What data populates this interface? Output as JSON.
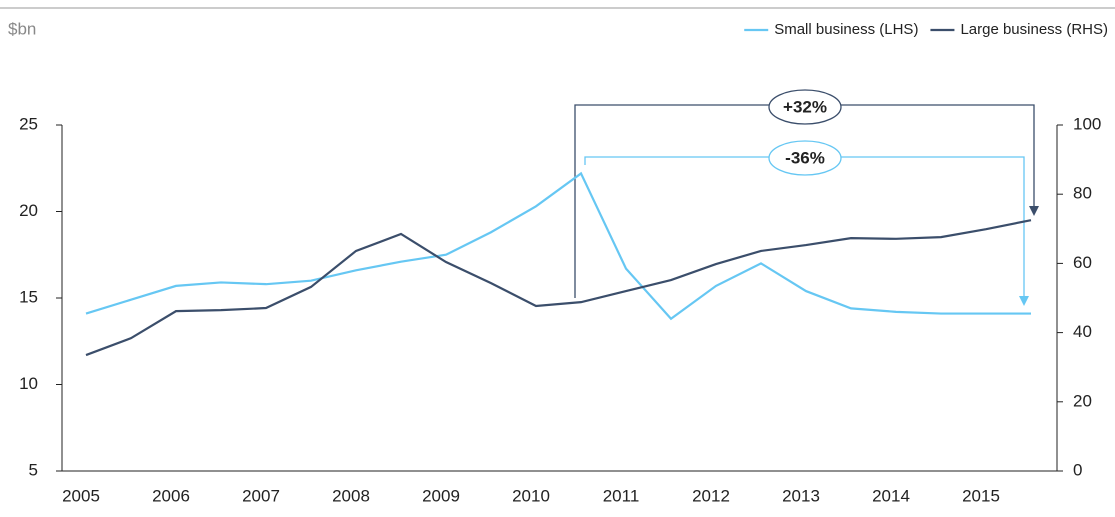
{
  "chart_data": {
    "type": "line",
    "unit_label": "$bn",
    "categories": [
      "2005",
      null,
      "2006",
      null,
      "2007",
      null,
      "2008",
      null,
      "2009",
      null,
      "2010",
      null,
      "2011",
      null,
      "2012",
      null,
      "2013",
      null,
      "2014",
      null,
      "2015",
      null
    ],
    "series": [
      {
        "name": "Small business (LHS)",
        "color": "#66c7f3",
        "axis": "y",
        "values": [
          14.1,
          14.9,
          15.7,
          15.9,
          15.8,
          16.0,
          16.6,
          17.1,
          17.5,
          18.8,
          20.3,
          22.2,
          16.7,
          13.8,
          15.7,
          17.0,
          15.4,
          14.4,
          14.2,
          14.1,
          14.1,
          14.1
        ]
      },
      {
        "name": "Large business (RHS)",
        "color": "#3b4e6b",
        "axis": "y2",
        "values": [
          33.5,
          38.4,
          46.2,
          46.5,
          47.1,
          53.2,
          63.6,
          68.5,
          60.4,
          54.3,
          47.7,
          48.8,
          52.0,
          55.2,
          59.8,
          63.6,
          65.3,
          67.3,
          67.1,
          67.6,
          69.9,
          72.5
        ]
      }
    ],
    "ylim": [
      5,
      25
    ],
    "yticks": [
      5,
      10,
      15,
      20,
      25
    ],
    "y2lim": [
      0,
      100
    ],
    "y2ticks": [
      0,
      20,
      40,
      60,
      80,
      100
    ],
    "legend": "top-right",
    "annotations": [
      "+32%",
      "-36%"
    ]
  }
}
